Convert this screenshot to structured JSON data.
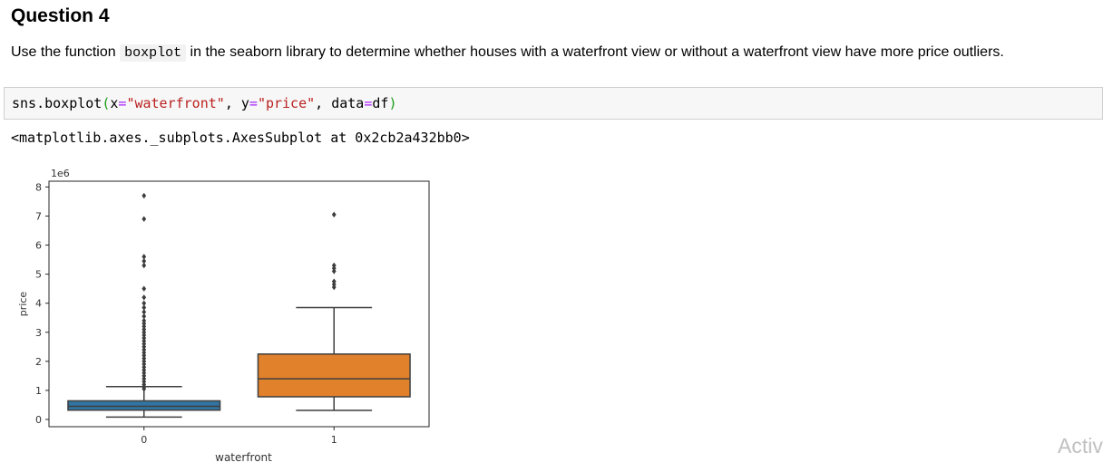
{
  "heading": "Question 4",
  "description": {
    "before": "Use the function ",
    "code": "boxplot",
    "after": " in the seaborn library to determine whether houses with a waterfront view or without a waterfront view have more price outliers."
  },
  "code_cell": {
    "tokens": [
      {
        "t": "sns.boxplot",
        "c": ""
      },
      {
        "t": "(",
        "c": "paren"
      },
      {
        "t": "x",
        "c": ""
      },
      {
        "t": "=",
        "c": "op"
      },
      {
        "t": "\"waterfront\"",
        "c": "str"
      },
      {
        "t": ", y",
        "c": ""
      },
      {
        "t": "=",
        "c": "op"
      },
      {
        "t": "\"price\"",
        "c": "str"
      },
      {
        "t": ", data",
        "c": ""
      },
      {
        "t": "=",
        "c": "op"
      },
      {
        "t": "df",
        "c": ""
      },
      {
        "t": ")",
        "c": "paren"
      }
    ]
  },
  "output_text": "<matplotlib.axes._subplots.AxesSubplot at 0x2cb2a432bb0>",
  "watermark": "Activ",
  "chart_data": {
    "type": "box",
    "xlabel": "waterfront",
    "ylabel": "price",
    "offset_label": "1e6",
    "ylim": [
      -0.25,
      8.2
    ],
    "yticks": [
      0,
      1,
      2,
      3,
      4,
      5,
      6,
      7,
      8
    ],
    "categories": [
      "0",
      "1"
    ],
    "boxes": [
      {
        "category": "0",
        "color": "#3274a1",
        "whisker_low": 0.08,
        "q1": 0.32,
        "median": 0.45,
        "q3": 0.64,
        "whisker_high": 1.13,
        "outliers": [
          1.05,
          1.12,
          1.2,
          1.3,
          1.4,
          1.5,
          1.6,
          1.7,
          1.8,
          1.9,
          2.0,
          2.1,
          2.2,
          2.3,
          2.4,
          2.5,
          2.6,
          2.7,
          2.8,
          2.9,
          3.0,
          3.1,
          3.2,
          3.3,
          3.4,
          3.55,
          3.7,
          3.85,
          4.0,
          4.2,
          4.5,
          5.3,
          5.45,
          5.6,
          6.9,
          7.7
        ]
      },
      {
        "category": "1",
        "color": "#e1812c",
        "whisker_low": 0.31,
        "q1": 0.78,
        "median": 1.4,
        "q3": 2.25,
        "whisker_high": 3.85,
        "outliers": [
          4.55,
          4.65,
          4.75,
          5.1,
          5.2,
          5.3,
          7.05
        ]
      }
    ]
  }
}
